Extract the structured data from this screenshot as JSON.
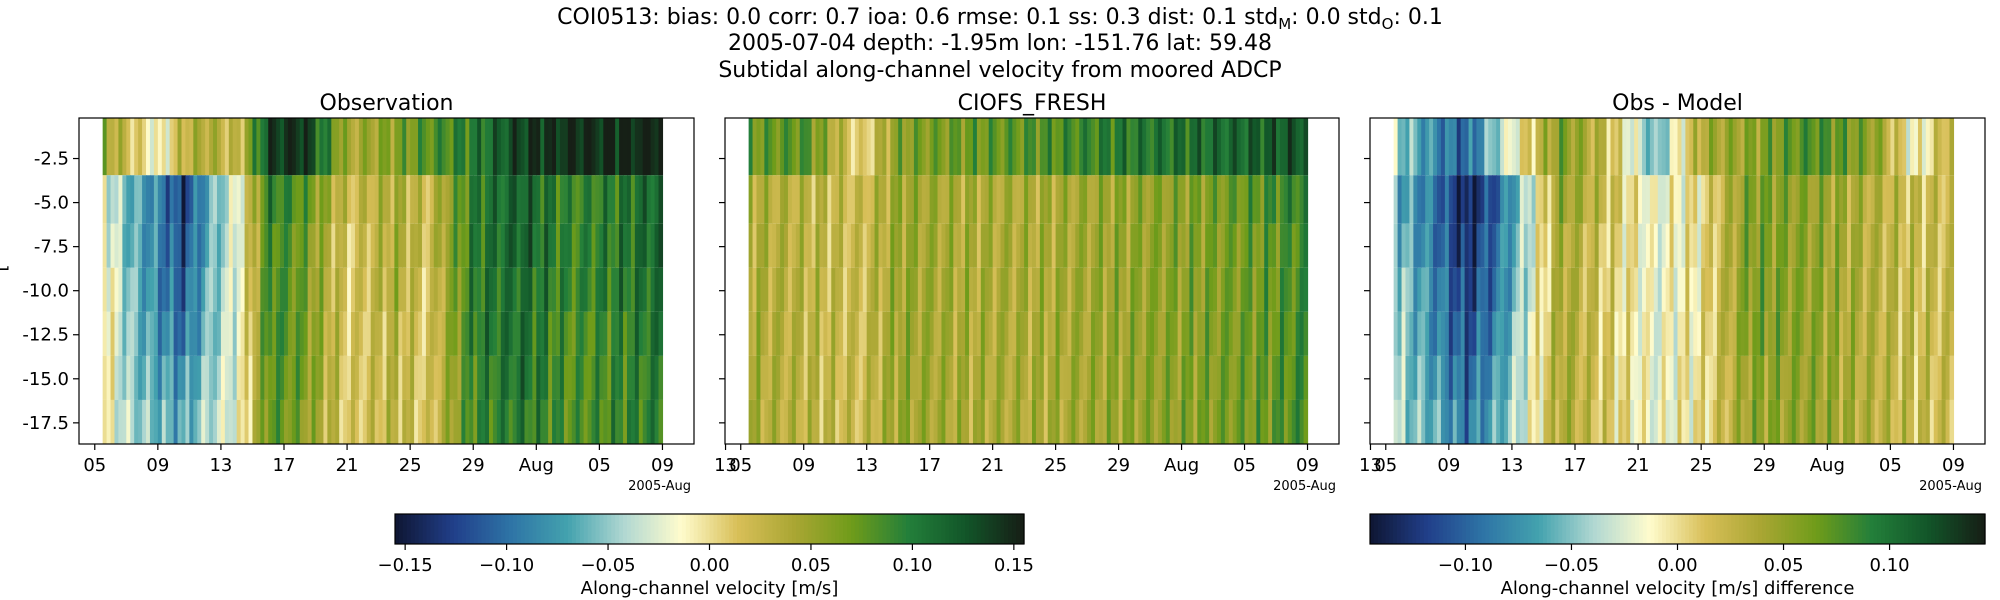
{
  "figure": {
    "title_line1": "COI0513: bias: 0.0  corr: 0.7  ioa: 0.6  rmse: 0.1  ss: 0.3  dist: 0.1  std",
    "title_line1_sub_M": "M",
    "title_line1_mid": ": 0.0  std",
    "title_line1_sub_O": "O",
    "title_line1_end": ": 0.1",
    "title_line2": "2005-07-04 depth: -1.95m lon: -151.76 lat: 59.48",
    "title_line3": "Subtidal along-channel velocity from moored ADCP",
    "ylabel_fragment": "[",
    "x_offset_label": "2005-Aug"
  },
  "colors": {
    "cmap_stops": [
      "#0f1735",
      "#213f8a",
      "#2e74a6",
      "#43a2ae",
      "#b1d8d2",
      "#fffccd",
      "#d8bf58",
      "#a9a633",
      "#6f9c1a",
      "#237f3a",
      "#125629",
      "#161f16"
    ],
    "frame": "#000000"
  },
  "chart_data": [
    {
      "type": "heatmap",
      "panel": "observation",
      "title": "Observation",
      "ylabel": "[",
      "x_tick_labels": [
        "05",
        "09",
        "13",
        "17",
        "21",
        "25",
        "29",
        "Aug",
        "05",
        "09",
        "13"
      ],
      "x_offset_label": "2005-Aug",
      "y_tick_labels": [
        "-2.5",
        "-5.0",
        "-7.5",
        "-10.0",
        "-12.5",
        "-15.0",
        "-17.5"
      ],
      "y_ticks": [
        -2.5,
        -5.0,
        -7.5,
        -10.0,
        -12.5,
        -15.0,
        -17.5
      ],
      "xlim_days": [
        185,
        224
      ],
      "ylim": [
        -18.7,
        -0.2
      ],
      "data_x_range_days": [
        186.5,
        222
      ],
      "depth_bins": [
        -1.95,
        -4.95,
        -7.45,
        -9.95,
        -12.45,
        -14.95,
        -17.45
      ],
      "vlim": [
        -0.155,
        0.155
      ],
      "time_series_ms": [
        {
          "day": 186.5,
          "v": [
            0.05,
            -0.02,
            -0.01,
            0.0,
            0.0,
            0.0,
            -0.01
          ]
        },
        {
          "day": 188,
          "v": [
            0.02,
            -0.06,
            -0.06,
            -0.05,
            -0.05,
            -0.05,
            -0.04
          ]
        },
        {
          "day": 190,
          "v": [
            -0.02,
            -0.09,
            -0.09,
            -0.09,
            -0.08,
            -0.07,
            -0.06
          ]
        },
        {
          "day": 191.5,
          "v": [
            0.03,
            -0.13,
            -0.12,
            -0.11,
            -0.1,
            -0.08,
            -0.07
          ]
        },
        {
          "day": 193,
          "v": [
            0.04,
            -0.07,
            -0.07,
            -0.06,
            -0.06,
            -0.05,
            -0.04
          ]
        },
        {
          "day": 195,
          "v": [
            0.02,
            -0.02,
            -0.02,
            -0.02,
            -0.02,
            -0.02,
            -0.02
          ]
        },
        {
          "day": 197,
          "v": [
            0.14,
            0.1,
            0.09,
            0.09,
            0.09,
            0.08,
            0.08
          ]
        },
        {
          "day": 199,
          "v": [
            0.15,
            0.08,
            0.07,
            0.07,
            0.07,
            0.07,
            0.06
          ]
        },
        {
          "day": 202,
          "v": [
            0.04,
            0.02,
            0.01,
            0.01,
            0.01,
            0.01,
            0.01
          ]
        },
        {
          "day": 205,
          "v": [
            0.06,
            0.04,
            0.04,
            0.04,
            0.03,
            0.03,
            0.03
          ]
        },
        {
          "day": 207,
          "v": [
            0.08,
            0.02,
            0.02,
            0.01,
            0.01,
            0.01,
            0.01
          ]
        },
        {
          "day": 210,
          "v": [
            0.1,
            0.1,
            0.1,
            0.1,
            0.1,
            0.09,
            0.09
          ]
        },
        {
          "day": 213,
          "v": [
            0.14,
            0.12,
            0.12,
            0.11,
            0.11,
            0.11,
            0.1
          ]
        },
        {
          "day": 216,
          "v": [
            0.15,
            0.09,
            0.09,
            0.09,
            0.08,
            0.08,
            0.08
          ]
        },
        {
          "day": 219,
          "v": [
            0.15,
            0.1,
            0.1,
            0.1,
            0.09,
            0.09,
            0.09
          ]
        },
        {
          "day": 222,
          "v": [
            0.16,
            0.12,
            0.12,
            0.11,
            0.11,
            0.1,
            0.1
          ]
        }
      ]
    },
    {
      "type": "heatmap",
      "panel": "model",
      "title": "CIOFS_FRESH",
      "x_tick_labels": [
        "05",
        "09",
        "13",
        "17",
        "21",
        "25",
        "29",
        "Aug",
        "05",
        "09",
        "13"
      ],
      "x_offset_label": "2005-Aug",
      "y_ticks": [
        -2.5,
        -5.0,
        -7.5,
        -10.0,
        -12.5,
        -15.0,
        -17.5
      ],
      "y_tick_labels_shown": false,
      "xlim_days": [
        185,
        224
      ],
      "ylim": [
        -18.7,
        -0.2
      ],
      "data_x_range_days": [
        186.5,
        222
      ],
      "depth_bins": [
        -1.95,
        -4.95,
        -7.45,
        -9.95,
        -12.45,
        -14.95,
        -17.45
      ],
      "vlim": [
        -0.155,
        0.155
      ],
      "time_series_ms": [
        {
          "day": 186.5,
          "v": [
            0.07,
            0.04,
            0.04,
            0.04,
            0.04,
            0.04,
            0.04
          ]
        },
        {
          "day": 190,
          "v": [
            0.08,
            0.03,
            0.03,
            0.03,
            0.03,
            0.03,
            0.03
          ]
        },
        {
          "day": 193.5,
          "v": [
            0.0,
            0.02,
            0.02,
            0.02,
            0.02,
            0.02,
            0.02
          ]
        },
        {
          "day": 196,
          "v": [
            0.06,
            0.05,
            0.05,
            0.05,
            0.05,
            0.05,
            0.05
          ]
        },
        {
          "day": 200,
          "v": [
            0.07,
            0.04,
            0.04,
            0.04,
            0.04,
            0.04,
            0.04
          ]
        },
        {
          "day": 205,
          "v": [
            0.08,
            0.04,
            0.04,
            0.04,
            0.04,
            0.04,
            0.04
          ]
        },
        {
          "day": 210,
          "v": [
            0.1,
            0.05,
            0.05,
            0.05,
            0.05,
            0.05,
            0.05
          ]
        },
        {
          "day": 215,
          "v": [
            0.11,
            0.06,
            0.06,
            0.06,
            0.06,
            0.06,
            0.06
          ]
        },
        {
          "day": 219,
          "v": [
            0.12,
            0.08,
            0.07,
            0.07,
            0.07,
            0.07,
            0.07
          ]
        },
        {
          "day": 222,
          "v": [
            0.13,
            0.1,
            0.09,
            0.09,
            0.09,
            0.09,
            0.09
          ]
        }
      ]
    },
    {
      "type": "heatmap",
      "panel": "difference",
      "title": "Obs - Model",
      "x_tick_labels": [
        "05",
        "09",
        "13",
        "17",
        "21",
        "25",
        "29",
        "Aug",
        "05",
        "09",
        "13"
      ],
      "x_offset_label": "2005-Aug",
      "y_ticks": [
        -2.5,
        -5.0,
        -7.5,
        -10.0,
        -12.5,
        -15.0,
        -17.5
      ],
      "y_tick_labels_shown": false,
      "xlim_days": [
        185,
        224
      ],
      "ylim": [
        -18.7,
        -0.2
      ],
      "data_x_range_days": [
        186.5,
        222
      ],
      "depth_bins": [
        -1.95,
        -4.95,
        -7.45,
        -9.95,
        -12.45,
        -14.95,
        -17.45
      ],
      "vlim": [
        -0.145,
        0.145
      ],
      "time_series_ms": [
        {
          "day": 186.5,
          "v": [
            -0.04,
            -0.06,
            -0.05,
            -0.04,
            -0.04,
            -0.04,
            -0.04
          ]
        },
        {
          "day": 189,
          "v": [
            -0.08,
            -0.09,
            -0.09,
            -0.08,
            -0.08,
            -0.07,
            -0.06
          ]
        },
        {
          "day": 191,
          "v": [
            -0.1,
            -0.14,
            -0.13,
            -0.12,
            -0.11,
            -0.1,
            -0.09
          ]
        },
        {
          "day": 193,
          "v": [
            -0.04,
            -0.1,
            -0.09,
            -0.09,
            -0.08,
            -0.07,
            -0.06
          ]
        },
        {
          "day": 195,
          "v": [
            0.01,
            -0.03,
            -0.03,
            -0.03,
            -0.02,
            -0.02,
            -0.02
          ]
        },
        {
          "day": 197,
          "v": [
            0.06,
            0.05,
            0.04,
            0.04,
            0.04,
            0.04,
            0.04
          ]
        },
        {
          "day": 200,
          "v": [
            0.02,
            0.02,
            0.01,
            0.01,
            0.01,
            0.01,
            0.01
          ]
        },
        {
          "day": 203,
          "v": [
            -0.06,
            -0.02,
            -0.02,
            -0.02,
            -0.02,
            -0.02,
            -0.02
          ]
        },
        {
          "day": 206,
          "v": [
            0.04,
            0.0,
            0.0,
            0.0,
            0.0,
            0.0,
            0.0
          ]
        },
        {
          "day": 209,
          "v": [
            0.05,
            0.06,
            0.06,
            0.06,
            0.06,
            0.05,
            0.05
          ]
        },
        {
          "day": 213,
          "v": [
            0.08,
            0.05,
            0.05,
            0.05,
            0.05,
            0.05,
            0.05
          ]
        },
        {
          "day": 217,
          "v": [
            0.05,
            0.03,
            0.03,
            0.03,
            0.03,
            0.03,
            0.03
          ]
        },
        {
          "day": 219.5,
          "v": [
            -0.02,
            0.02,
            0.02,
            0.02,
            0.02,
            0.02,
            0.02
          ]
        },
        {
          "day": 222,
          "v": [
            0.04,
            0.02,
            0.02,
            0.02,
            0.02,
            0.02,
            0.02
          ]
        }
      ]
    }
  ],
  "colorbars": [
    {
      "label": "Along-channel velocity [m/s]",
      "vlim": [
        -0.155,
        0.155
      ],
      "ticks": [
        -0.15,
        -0.1,
        -0.05,
        0.0,
        0.05,
        0.1,
        0.15
      ],
      "tick_labels": [
        "−0.15",
        "−0.10",
        "−0.05",
        "0.00",
        "0.05",
        "0.10",
        "0.15"
      ]
    },
    {
      "label": "Along-channel velocity [m/s] difference",
      "vlim": [
        -0.145,
        0.145
      ],
      "ticks": [
        -0.1,
        -0.05,
        0.0,
        0.05,
        0.1
      ],
      "tick_labels": [
        "−0.10",
        "−0.05",
        "0.00",
        "0.05",
        "0.10"
      ]
    }
  ]
}
